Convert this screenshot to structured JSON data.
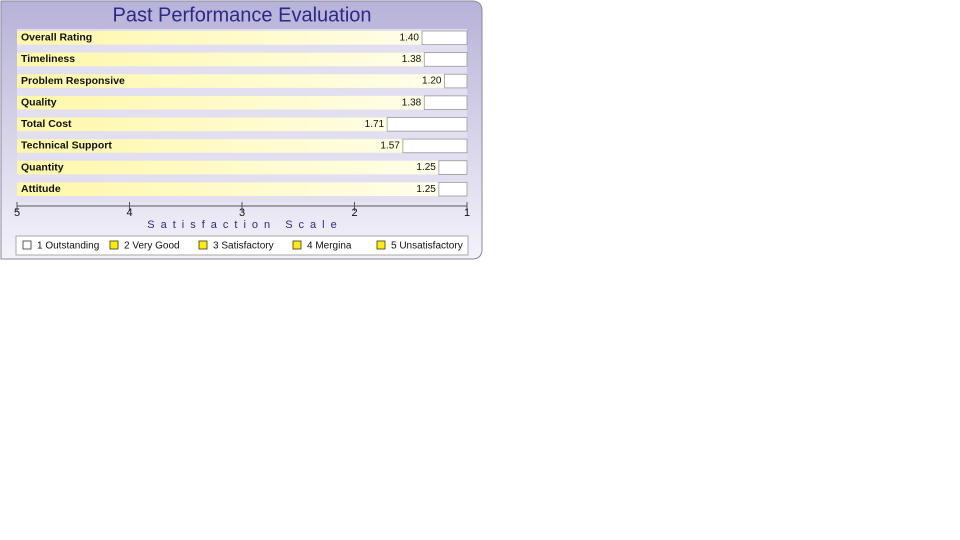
{
  "chart_data": {
    "type": "bar",
    "orientation": "horizontal",
    "title": "Past Performance Evaluation",
    "categories": [
      "Overall Rating",
      "Timeliness",
      "Problem Responsive",
      "Quality",
      "Total Cost",
      "Technical Support",
      "Quantity",
      "Attitude"
    ],
    "values": [
      1.4,
      1.38,
      1.2,
      1.38,
      1.71,
      1.57,
      1.25,
      1.25
    ],
    "value_labels": [
      "1.40",
      "1.38",
      "1.20",
      "1.38",
      "1.71",
      "1.57",
      "1.25",
      "1.25"
    ],
    "color": "#ffffff",
    "xlabel": "Satisfaction Scale",
    "xlim": [
      5,
      1
    ],
    "xticks": [
      5,
      4,
      3,
      2,
      1
    ],
    "legend": [
      {
        "label": "1 Outstanding",
        "color": "#ffffff"
      },
      {
        "label": "2 Very Good",
        "color": "#ffee00"
      },
      {
        "label": "3 Satisfactory",
        "color": "#ffee00"
      },
      {
        "label": "4 Mergina",
        "color": "#ffee00"
      },
      {
        "label": "5 Unsatisfactory",
        "color": "#ffee00"
      }
    ]
  }
}
